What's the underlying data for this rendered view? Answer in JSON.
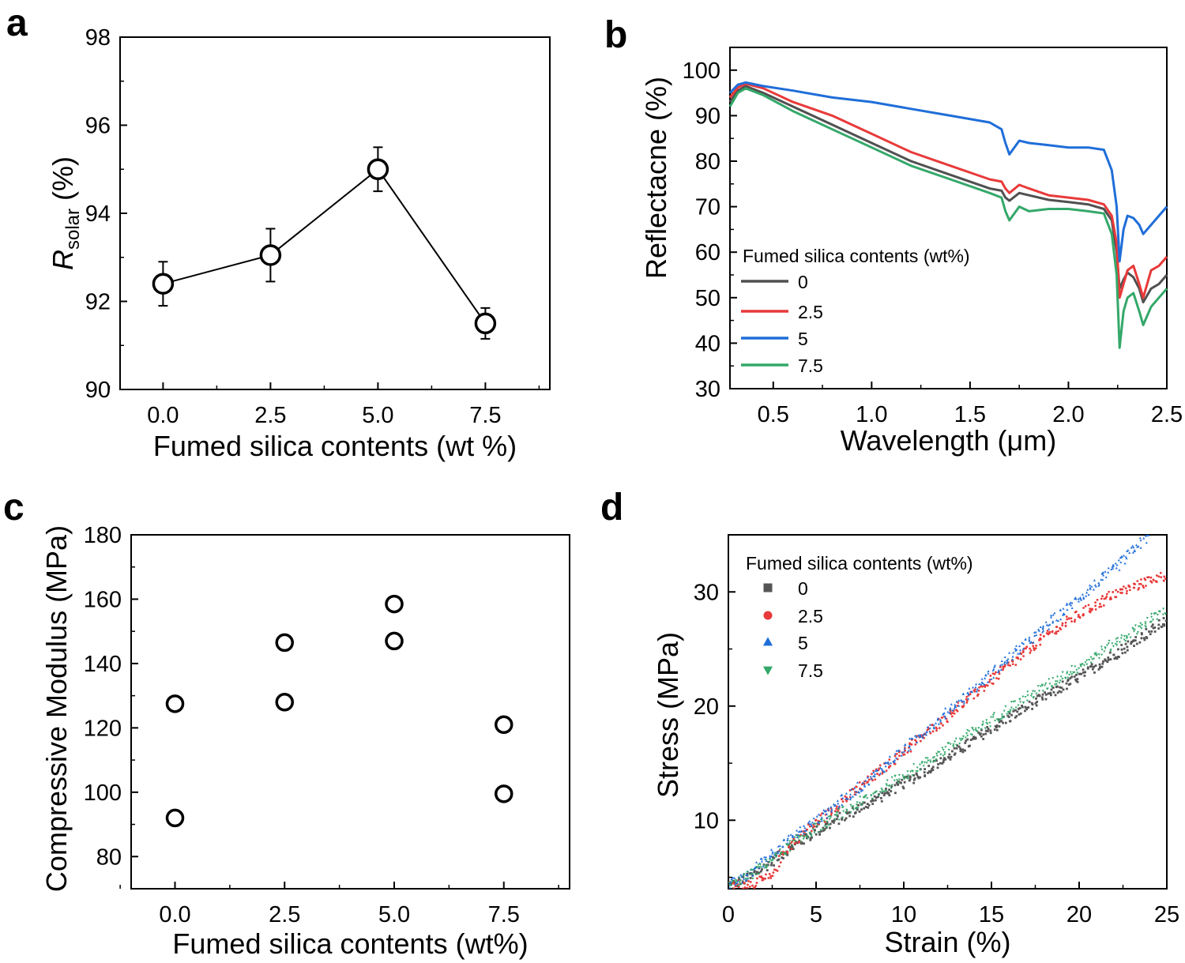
{
  "panels": [
    {
      "letter": "a"
    },
    {
      "letter": "b"
    },
    {
      "letter": "c"
    },
    {
      "letter": "d"
    }
  ],
  "chart_data": [
    {
      "panel": "a",
      "type": "scatter",
      "xlabel": "Fumed silica contents (wt %)",
      "ylabel_main": "R",
      "ylabel_sub": "solar",
      "ylabel_rest": " (%)",
      "xlim": [
        -1,
        9
      ],
      "ylim": [
        90,
        98
      ],
      "xticks": [
        "0.0",
        "2.5",
        "5.0",
        "7.5"
      ],
      "yticks": [
        "90",
        "92",
        "94",
        "96",
        "98"
      ],
      "series": [
        {
          "x": [
            0,
            2.5,
            5,
            7.5
          ],
          "y": [
            92.4,
            93.05,
            95.0,
            91.5
          ],
          "error": [
            0.5,
            0.6,
            0.5,
            0.35
          ],
          "connected": true
        }
      ],
      "marker": "open-circle",
      "color": "#000000"
    },
    {
      "panel": "b",
      "type": "line",
      "xlabel": "Wavelength (μm)",
      "ylabel": "Reflectacne (%)",
      "xlim": [
        0.28,
        2.5
      ],
      "ylim": [
        30,
        105
      ],
      "xticks": [
        "0.5",
        "1.0",
        "1.5",
        "2.0",
        "2.5"
      ],
      "yticks": [
        "30",
        "40",
        "50",
        "60",
        "70",
        "80",
        "90",
        "100"
      ],
      "legend_title": "Fumed silica contents (wt%)",
      "legend_position": "center-left",
      "series": [
        {
          "name": "0",
          "color": "#505050",
          "x": [
            0.28,
            0.32,
            0.36,
            0.45,
            0.6,
            0.8,
            1.0,
            1.2,
            1.4,
            1.6,
            1.66,
            1.68,
            1.7,
            1.75,
            1.8,
            1.9,
            2.0,
            2.1,
            2.18,
            2.22,
            2.245,
            2.26,
            2.28,
            2.3,
            2.33,
            2.36,
            2.38,
            2.42,
            2.46,
            2.5
          ],
          "y": [
            93,
            95.5,
            96.5,
            95,
            92,
            88,
            84,
            80,
            77,
            74,
            73.5,
            72,
            71.3,
            73,
            72.5,
            71.5,
            71,
            70.5,
            69.5,
            67,
            60,
            52,
            54,
            55.5,
            54.5,
            52,
            49,
            52,
            53,
            55
          ]
        },
        {
          "name": "2.5",
          "color": "#e83a3a",
          "x": [
            0.28,
            0.32,
            0.36,
            0.45,
            0.6,
            0.8,
            1.0,
            1.2,
            1.4,
            1.6,
            1.66,
            1.68,
            1.7,
            1.75,
            1.8,
            1.9,
            2.0,
            2.1,
            2.18,
            2.22,
            2.245,
            2.26,
            2.28,
            2.3,
            2.33,
            2.36,
            2.38,
            2.42,
            2.46,
            2.5
          ],
          "y": [
            94,
            96.2,
            97,
            96,
            93,
            90,
            86,
            82,
            79,
            76,
            75.5,
            74,
            73,
            74.8,
            74,
            72.5,
            72,
            71.5,
            70.5,
            68,
            62,
            50,
            53,
            56,
            57,
            53,
            50,
            56,
            57,
            59
          ]
        },
        {
          "name": "5",
          "color": "#1f6ed8",
          "x": [
            0.28,
            0.32,
            0.36,
            0.45,
            0.6,
            0.8,
            1.0,
            1.2,
            1.4,
            1.6,
            1.66,
            1.68,
            1.7,
            1.75,
            1.8,
            1.9,
            2.0,
            2.1,
            2.18,
            2.22,
            2.245,
            2.26,
            2.28,
            2.3,
            2.33,
            2.36,
            2.38,
            2.42,
            2.46,
            2.5
          ],
          "y": [
            95,
            96.8,
            97.3,
            96.5,
            95.5,
            94,
            93,
            91.5,
            90,
            88.5,
            87,
            84,
            81.5,
            84.5,
            84,
            83.5,
            83,
            83,
            82.5,
            78,
            70,
            58,
            65,
            68,
            67.5,
            66,
            64,
            66,
            68,
            70
          ]
        },
        {
          "name": "7.5",
          "color": "#34a86a",
          "x": [
            0.28,
            0.32,
            0.36,
            0.45,
            0.6,
            0.8,
            1.0,
            1.2,
            1.4,
            1.6,
            1.66,
            1.68,
            1.7,
            1.75,
            1.8,
            1.9,
            2.0,
            2.1,
            2.18,
            2.22,
            2.245,
            2.26,
            2.28,
            2.3,
            2.33,
            2.36,
            2.38,
            2.42,
            2.46,
            2.5
          ],
          "y": [
            92,
            95,
            96,
            94.5,
            91,
            87,
            83,
            79,
            76,
            73,
            72,
            69,
            67,
            70,
            69,
            69.5,
            69.5,
            69,
            68.5,
            64,
            55,
            39,
            47,
            50,
            51,
            47,
            44,
            48,
            50,
            52
          ]
        }
      ]
    },
    {
      "panel": "c",
      "type": "scatter",
      "xlabel": "Fumed silica contents (wt%)",
      "ylabel": "Compressive Modulus (MPa)",
      "xlim": [
        -1,
        9
      ],
      "ylim": [
        70,
        180
      ],
      "xticks": [
        "0.0",
        "2.5",
        "5.0",
        "7.5"
      ],
      "yticks": [
        "80",
        "100",
        "120",
        "140",
        "160",
        "180"
      ],
      "series": [
        {
          "x": [
            0,
            0,
            2.5,
            2.5,
            5,
            5,
            7.5,
            7.5
          ],
          "y": [
            127.5,
            92,
            146.5,
            128,
            158.5,
            147,
            121,
            99.5
          ]
        }
      ],
      "marker": "open-circle",
      "color": "#000000"
    },
    {
      "panel": "d",
      "type": "scatter",
      "xlabel": "Strain (%)",
      "ylabel": "Stress (MPa)",
      "xlim": [
        0,
        25
      ],
      "ylim": [
        4,
        35
      ],
      "xticks": [
        "0",
        "5",
        "10",
        "15",
        "20",
        "25"
      ],
      "yticks": [
        "10",
        "20",
        "30"
      ],
      "legend_title": "Fumed silica contents (wt%)",
      "legend_position": "top-left",
      "series": [
        {
          "name": "0",
          "marker": "square",
          "color": "#555555",
          "x": [
            0,
            1,
            2,
            3,
            5,
            8,
            12,
            16,
            20,
            23,
            25
          ],
          "y": [
            4.2,
            4.8,
            5.8,
            7,
            9,
            11.5,
            15,
            19,
            22.5,
            25.5,
            27.5
          ]
        },
        {
          "name": "2.5",
          "marker": "circle",
          "color": "#e83a3a",
          "x": [
            0,
            1.5,
            2.5,
            3,
            4,
            6,
            8,
            10,
            12,
            14,
            16,
            18,
            20,
            22,
            24,
            25
          ],
          "y": [
            4.2,
            4.5,
            5,
            7,
            8.5,
            11,
            13.5,
            16,
            18.5,
            21,
            23.5,
            26,
            28,
            29.8,
            31,
            31.5
          ]
        },
        {
          "name": "5",
          "marker": "triangle-up",
          "color": "#1f6ed8",
          "x": [
            0,
            1,
            2,
            3,
            5,
            8,
            11,
            14,
            17,
            20,
            22,
            24
          ],
          "y": [
            4.3,
            5,
            6.5,
            7.8,
            10,
            13.5,
            17.5,
            21.5,
            25.5,
            29.5,
            32,
            35
          ]
        },
        {
          "name": "7.5",
          "marker": "triangle-down",
          "color": "#34a86a",
          "x": [
            0,
            1,
            2,
            3,
            5,
            8,
            12,
            16,
            20,
            23,
            25
          ],
          "y": [
            4.2,
            5,
            6,
            7.2,
            9.3,
            12,
            15.8,
            19.8,
            23.5,
            26.5,
            28.5
          ]
        }
      ]
    }
  ]
}
